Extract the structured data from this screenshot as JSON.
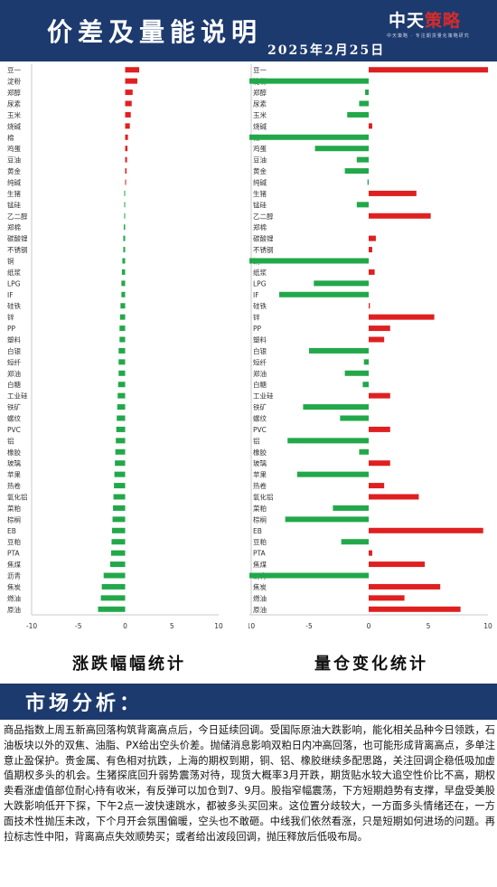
{
  "header": {
    "title": "价差及量能说明",
    "date": "2025年2月25日",
    "logo_main": "中天",
    "logo_accent": "策略",
    "logo_sub": "中天策略 · 专注期货量化策略研究"
  },
  "colors": {
    "up": "#e02020",
    "down": "#22a84a",
    "header_bg": "#1d3a6e"
  },
  "chart_data": [
    {
      "type": "bar",
      "orientation": "horizontal",
      "caption": "涨跌幅幅统计",
      "xlim": [
        -10,
        10
      ],
      "xticks": [
        -10,
        -5,
        0,
        5,
        10
      ],
      "grid": false,
      "categories": [
        "豆一",
        "淀粉",
        "郑醇",
        "尿素",
        "玉米",
        "烧碱",
        "棉",
        "鸡蛋",
        "豆油",
        "黄金",
        "纯碱",
        "生猪",
        "锰硅",
        "乙二醇",
        "郑棉",
        "碳酸锂",
        "不锈钢",
        "铜",
        "纸浆",
        "LPG",
        "IF",
        "硅铁",
        "锌",
        "PP",
        "塑料",
        "白银",
        "短纤",
        "郑油",
        "白糖",
        "工业硅",
        "铁矿",
        "螺纹",
        "PVC",
        "铝",
        "橡胶",
        "玻璃",
        "苹果",
        "热卷",
        "氧化铝",
        "菜粕",
        "棕榈",
        "EB",
        "豆粕",
        "PTA",
        "焦煤",
        "沥青",
        "焦炭",
        "燃油",
        "原油"
      ],
      "values": [
        1.5,
        1.3,
        0.8,
        0.7,
        0.6,
        0.5,
        0.3,
        0.25,
        0.2,
        0.15,
        0.1,
        -0.1,
        -0.1,
        -0.1,
        -0.15,
        -0.2,
        -0.2,
        -0.3,
        -0.35,
        -0.4,
        -0.4,
        -0.5,
        -0.55,
        -0.6,
        -0.6,
        -0.7,
        -0.7,
        -0.7,
        -0.75,
        -0.8,
        -0.85,
        -0.9,
        -0.95,
        -1.0,
        -1.05,
        -1.1,
        -1.15,
        -1.2,
        -1.25,
        -1.3,
        -1.35,
        -1.4,
        -1.45,
        -1.5,
        -1.6,
        -2.3,
        -2.5,
        -2.6,
        -2.9
      ]
    },
    {
      "type": "bar",
      "orientation": "horizontal",
      "caption": "量仓变化统计",
      "xlim": [
        -10,
        10
      ],
      "xticks": [
        -10,
        -5,
        0,
        5,
        10
      ],
      "grid": false,
      "categories": [
        "豆一",
        "淀粉",
        "郑醇",
        "尿素",
        "玉米",
        "烧碱",
        "棉",
        "鸡蛋",
        "豆油",
        "黄金",
        "纯碱",
        "生猪",
        "锰硅",
        "乙二醇",
        "郑棉",
        "碳酸锂",
        "不锈钢",
        "铜",
        "纸浆",
        "LPG",
        "IF",
        "硅铁",
        "锌",
        "PP",
        "塑料",
        "白银",
        "短纤",
        "郑油",
        "白糖",
        "工业硅",
        "铁矿",
        "螺纹",
        "PVC",
        "铝",
        "橡胶",
        "玻璃",
        "苹果",
        "热卷",
        "氧化铝",
        "菜粕",
        "棕榈",
        "EB",
        "豆粕",
        "PTA",
        "焦煤",
        "沥青",
        "焦炭",
        "燃油",
        "原油"
      ],
      "values": [
        10,
        -10,
        -0.3,
        -0.8,
        -1.8,
        0.3,
        -10,
        -4.5,
        -1.0,
        -2.0,
        -0.1,
        4.0,
        -1.0,
        5.2,
        0,
        0.6,
        0.3,
        -10,
        0.5,
        -4.6,
        -7.5,
        0.1,
        5.5,
        1.8,
        1.3,
        -5.0,
        -0.4,
        -2.0,
        -0.5,
        1.8,
        -5.5,
        -2.4,
        1.8,
        -6.8,
        -0.8,
        1.8,
        -6.0,
        1.3,
        4.2,
        -3.0,
        -7.0,
        9.6,
        -2.3,
        0.3,
        4.7,
        -10,
        6.0,
        3.0,
        7.7
      ]
    }
  ],
  "market": {
    "title": "市场分析：",
    "text": "商品指数上周五新高回落构筑背离高点后，今日延续回调。受国际原油大跌影响，能化相关品种今日领跌，石油板块以外的双焦、油脂、PX给出空头价差。抛储消息影响双粕日内冲高回落，也可能形成背离高点，多单注意止盈保护。贵金属、有色相对抗跌，上海的期权到期，铜、铝、橡胶继续多配思路，关注回调企稳低吸加虚值期权多头的机会。生猪探底回升弱势震荡对待，现货大概率3月开跌，期货贴水较大追空性价比不高，期权卖看涨虚值部位耐心持有收米，有反弹可以加仓到7、9月。股指窄幅震荡，下方短期趋势有支撑，早盘受美股大跌影响低开下探，下午2点一波快速跳水，都被多头买回来。这位置分歧较大，一方面多头情绪还在，一方面技术性抛压未改，下个月开会氛围偏暖，空头也不敢砸。中线我们依然看涨，只是短期如何进场的问题。再拉标志性中阳，背离高点失效顺势买；或者给出波段回调，抛压释放后低吸布局。"
  }
}
